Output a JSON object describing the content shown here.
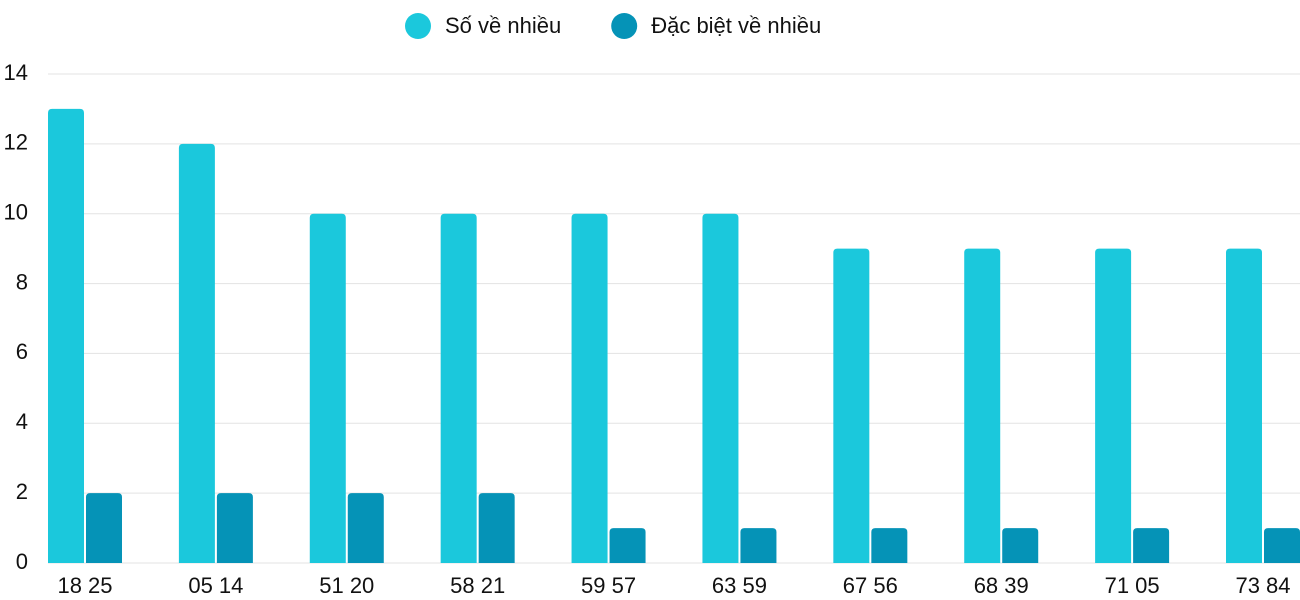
{
  "chart_data": {
    "type": "bar",
    "categories": [
      "18 25",
      "05 14",
      "51 20",
      "58 21",
      "59 57",
      "63 59",
      "67 56",
      "68 39",
      "71 05",
      "73 84"
    ],
    "series": [
      {
        "name": "Số về nhiều",
        "color": "#1bc8dc",
        "values": [
          13,
          12,
          10,
          10,
          10,
          10,
          9,
          9,
          9,
          9
        ]
      },
      {
        "name": "Đặc biệt về nhiều",
        "color": "#0593b7",
        "values": [
          2,
          2,
          2,
          2,
          1,
          1,
          1,
          1,
          1,
          1
        ]
      }
    ],
    "ylim": [
      0,
      14
    ],
    "yticks": [
      0,
      2,
      4,
      6,
      8,
      10,
      12,
      14
    ],
    "grid": true,
    "legend": "top"
  }
}
